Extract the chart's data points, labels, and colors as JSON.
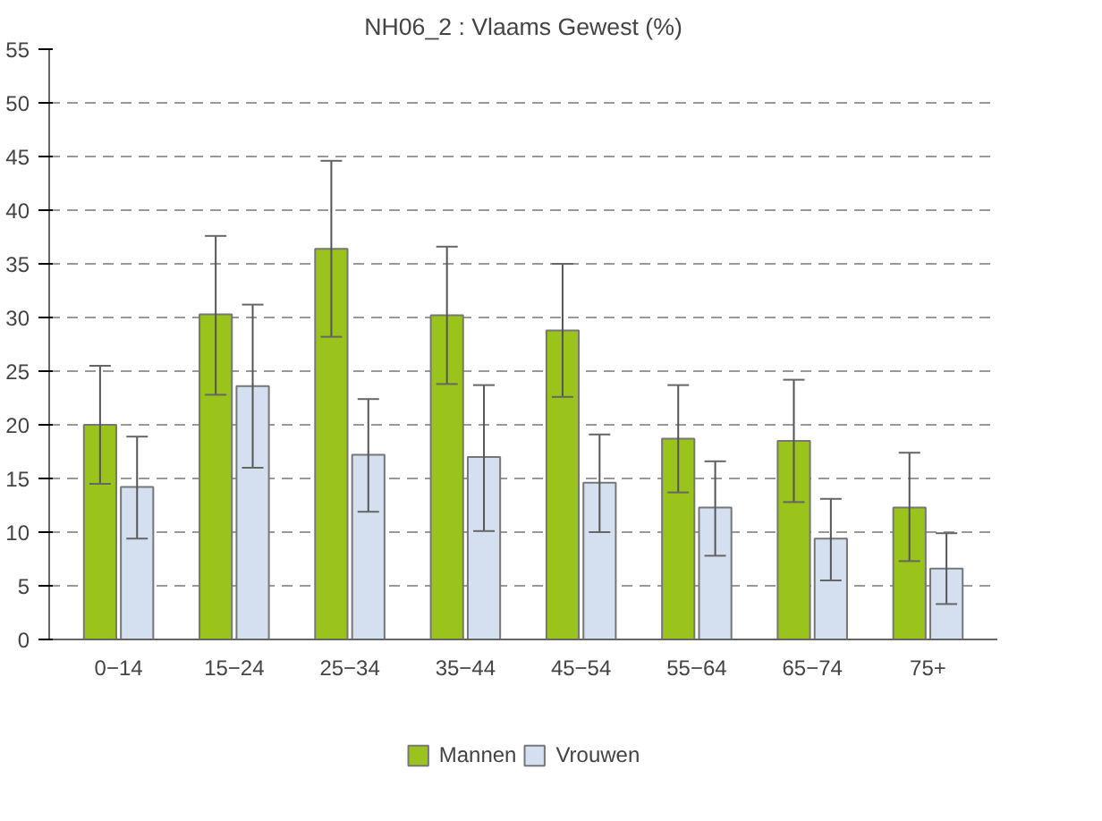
{
  "chart_data": {
    "type": "bar",
    "title": "NH06_2 : Vlaams Gewest (%)",
    "categories": [
      "0−14",
      "15−24",
      "25−34",
      "35−44",
      "45−54",
      "55−64",
      "65−74",
      "75+"
    ],
    "series": [
      {
        "name": "Mannen",
        "color": "#9ac31c",
        "values": [
          20,
          30.3,
          36.4,
          30.2,
          28.8,
          18.7,
          18.5,
          12.3
        ],
        "errors": [
          [
            14.5,
            25.5
          ],
          [
            22.8,
            37.6
          ],
          [
            28.2,
            44.6
          ],
          [
            23.8,
            36.6
          ],
          [
            22.6,
            35
          ],
          [
            13.7,
            23.7
          ],
          [
            12.8,
            24.2
          ],
          [
            7.3,
            17.4
          ]
        ]
      },
      {
        "name": "Vrouwen",
        "color": "#d4e0f0",
        "values": [
          14.2,
          23.6,
          17.2,
          17,
          14.6,
          12.3,
          9.4,
          6.6
        ],
        "errors": [
          [
            9.4,
            18.9
          ],
          [
            16,
            31.2
          ],
          [
            11.9,
            22.4
          ],
          [
            10.1,
            23.7
          ],
          [
            10,
            19.1
          ],
          [
            7.8,
            16.6
          ],
          [
            5.5,
            13.1
          ],
          [
            3.3,
            9.9
          ]
        ]
      }
    ],
    "ylim": [
      0,
      55
    ],
    "yticks": [
      0,
      5,
      10,
      15,
      20,
      25,
      30,
      35,
      40,
      45,
      50,
      55
    ],
    "grid": "y",
    "legend": "bottom"
  }
}
